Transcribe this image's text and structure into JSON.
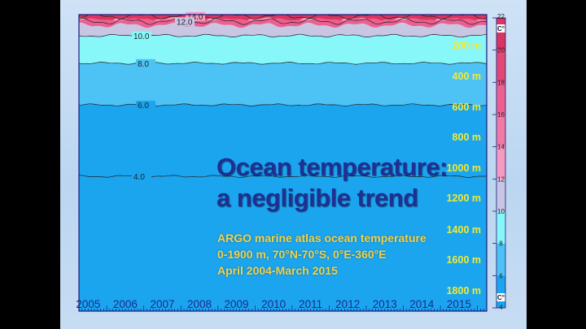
{
  "chart_data": {
    "type": "heatmap",
    "title": "Ocean temperature: a negligible trend",
    "title_lines": [
      "Ocean temperature:",
      "a negligible trend"
    ],
    "subtitle_lines": [
      "ARGO marine atlas ocean temperature",
      "0-1900 m, 70°N-70°S, 0°E-360°E",
      "April 2004-March 2015"
    ],
    "x_tick_labels": [
      "2005",
      "2006",
      "2007",
      "2008",
      "2009",
      "2010",
      "2011",
      "2012",
      "2013",
      "2014",
      "2015"
    ],
    "x_range": [
      2004.25,
      2015.25
    ],
    "depth_tick_labels": [
      "200 m",
      "400 m",
      "600 m",
      "800 m",
      "1000 m",
      "1200 m",
      "1400 m",
      "1600 m",
      "1800 m"
    ],
    "depth_range_m": [
      0,
      1900
    ],
    "colorbar": {
      "unit_label": "C°",
      "tick_labels": [
        "22",
        "20",
        "18",
        "16",
        "14",
        "12",
        "10",
        "8",
        "6",
        "4"
      ],
      "range": [
        4,
        22
      ],
      "bands": [
        {
          "from": 4,
          "to": 6,
          "color": "#1ba5ee"
        },
        {
          "from": 6,
          "to": 8,
          "color": "#4dc3f5"
        },
        {
          "from": 8,
          "to": 10,
          "color": "#88f7f9"
        },
        {
          "from": 10,
          "to": 12,
          "color": "#c9c6e3"
        },
        {
          "from": 12,
          "to": 14,
          "color": "#f59bc0"
        },
        {
          "from": 14,
          "to": 16,
          "color": "#f07aa4"
        },
        {
          "from": 16,
          "to": 18,
          "color": "#ec5f8e"
        },
        {
          "from": 18,
          "to": 20,
          "color": "#e24876"
        },
        {
          "from": 20,
          "to": 22,
          "color": "#d83563"
        }
      ]
    },
    "contours": [
      {
        "label": "14.0",
        "depth_m": 10
      },
      {
        "label": "12.0",
        "depth_m": 45
      },
      {
        "label": "10.0",
        "depth_m": 140
      },
      {
        "label": "8.0",
        "depth_m": 320
      },
      {
        "label": "6.0",
        "depth_m": 590
      },
      {
        "label": "4.0",
        "depth_m": 1060
      }
    ]
  },
  "colors": {
    "title": "#1f2f93",
    "info": "#f3d24a",
    "depth_label": "#f5ea2c",
    "frame": "#1a1a7a"
  }
}
